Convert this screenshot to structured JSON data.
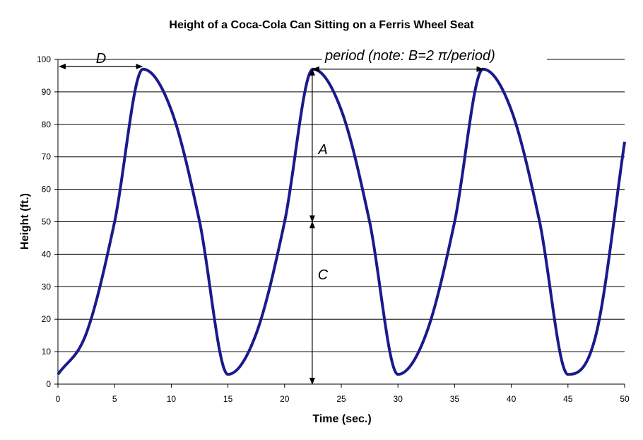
{
  "chart_data": {
    "type": "line",
    "title": "Height of a Coca-Cola Can Sitting on a Ferris Wheel Seat",
    "xlabel": "Time (sec.)",
    "ylabel": "Height (ft.)",
    "xlim": [
      0,
      50
    ],
    "ylim": [
      0,
      100
    ],
    "xticks": [
      0,
      5,
      10,
      15,
      20,
      25,
      30,
      35,
      40,
      45,
      50
    ],
    "yticks": [
      0,
      10,
      20,
      30,
      40,
      50,
      60,
      70,
      80,
      90,
      100
    ],
    "grid": "horizontal",
    "legend": "none",
    "series": [
      {
        "color": "#1a1a8c",
        "x": [
          0,
          2.5,
          5,
          7.5,
          10,
          12.5,
          15,
          17.5,
          20,
          22.5,
          25,
          27.5,
          30,
          32.5,
          35,
          37.5,
          40,
          42.5,
          45,
          47.5,
          50
        ],
        "y": [
          3,
          15.6,
          50,
          97,
          84.4,
          50,
          3,
          15.6,
          50,
          97,
          84.4,
          50,
          3,
          15.6,
          50,
          97,
          84.4,
          50,
          3,
          15.6,
          74.6
        ]
      }
    ],
    "annotations": {
      "d_label": "D",
      "period_label": "period (note: B=2 π/period)",
      "a_label": "A",
      "c_label": "C"
    }
  }
}
